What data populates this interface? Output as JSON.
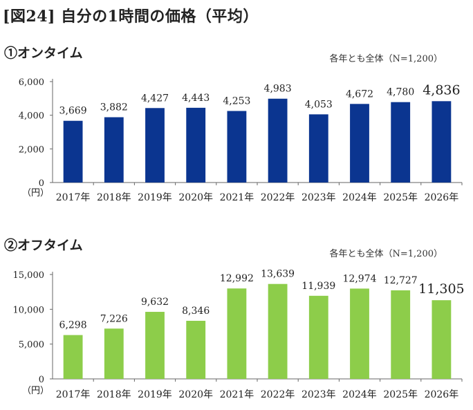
{
  "figure_title": "[図24] 自分の1時間の価格（平均）",
  "chart_data": [
    {
      "type": "bar",
      "title": "①オンタイム",
      "note": "各年とも全体（N=1,200）",
      "unit": "（円）",
      "categories": [
        "2017年",
        "2018年",
        "2019年",
        "2020年",
        "2021年",
        "2022年",
        "2023年",
        "2024年",
        "2025年",
        "2026年"
      ],
      "values": [
        3669,
        3882,
        4427,
        4443,
        4253,
        4983,
        4053,
        4672,
        4780,
        4836
      ],
      "value_labels": [
        "3,669",
        "3,882",
        "4,427",
        "4,443",
        "4,253",
        "4,983",
        "4,053",
        "4,672",
        "4,780",
        "4,836"
      ],
      "yticks": [
        0,
        2000,
        4000,
        6000
      ],
      "ytick_labels": [
        "0",
        "2,000",
        "4,000",
        "6,000"
      ],
      "ylim": [
        0,
        6000
      ],
      "bar_color": "#0b3590",
      "highlight_last": true,
      "grid": false
    },
    {
      "type": "bar",
      "title": "②オフタイム",
      "note": "各年とも全体（N=1,200）",
      "unit": "（円）",
      "categories": [
        "2017年",
        "2018年",
        "2019年",
        "2020年",
        "2021年",
        "2022年",
        "2023年",
        "2024年",
        "2025年",
        "2026年"
      ],
      "values": [
        6298,
        7226,
        9632,
        8346,
        12992,
        13639,
        11939,
        12974,
        12727,
        11305
      ],
      "value_labels": [
        "6,298",
        "7,226",
        "9,632",
        "8,346",
        "12,992",
        "13,639",
        "11,939",
        "12,974",
        "12,727",
        "11,305"
      ],
      "yticks": [
        0,
        5000,
        10000,
        15000
      ],
      "ytick_labels": [
        "0",
        "5,000",
        "10,000",
        "15,000"
      ],
      "ylim": [
        0,
        15000
      ],
      "bar_color": "#8dcd4a",
      "highlight_last": true,
      "grid": false
    }
  ]
}
